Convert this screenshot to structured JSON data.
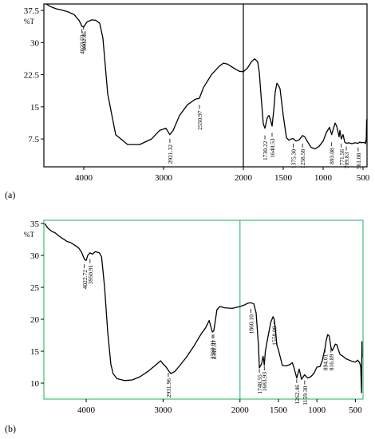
{
  "panels": [
    {
      "label": "(a)",
      "frame_color": "#000000",
      "trace_color": "#000000",
      "marker_color": "#000000",
      "ylabel": "%T",
      "xlim": [
        4500,
        450
      ],
      "ylim": [
        1.0,
        39.0
      ],
      "yticks": [
        {
          "v": 37.5,
          "t": "37.5"
        },
        {
          "v": 30,
          "t": "30"
        },
        {
          "v": 22.5,
          "t": "22.5"
        },
        {
          "v": 15,
          "t": "15"
        },
        {
          "v": 7.5,
          "t": "7.5"
        }
      ],
      "xticks": [
        {
          "v": 4000,
          "t": "4000"
        },
        {
          "v": 3000,
          "t": "3000"
        },
        {
          "v": 2000,
          "t": "2000"
        },
        {
          "v": 1500,
          "t": "1500"
        },
        {
          "v": 1000,
          "t": "1000"
        },
        {
          "v": 500,
          "t": "500"
        }
      ],
      "marker_x": 2000
    },
    {
      "label": "(b)",
      "frame_color": "#3cc07a",
      "trace_color": "#000000",
      "marker_color": "#3cc07a",
      "ylabel": "%T",
      "xlim": [
        4550,
        400
      ],
      "ylim": [
        7.5,
        35.5
      ],
      "yticks": [
        {
          "v": 35,
          "t": "35"
        },
        {
          "v": 30,
          "t": "30"
        },
        {
          "v": 25,
          "t": "25"
        },
        {
          "v": 20,
          "t": "20"
        },
        {
          "v": 15,
          "t": "15"
        },
        {
          "v": 10,
          "t": "10"
        }
      ],
      "xticks": [
        {
          "v": 4000,
          "t": "4000"
        },
        {
          "v": 3000,
          "t": "3000"
        },
        {
          "v": 2000,
          "t": "2000"
        },
        {
          "v": 1500,
          "t": "1500"
        },
        {
          "v": 1000,
          "t": "1000"
        },
        {
          "v": 500,
          "t": "500"
        }
      ],
      "marker_x": 2000
    }
  ],
  "chart_data": [
    {
      "type": "line",
      "title": "(a)",
      "ylabel": "%T",
      "xlim": [
        4500,
        450
      ],
      "ylim": [
        1.0,
        39.0
      ],
      "grid": false,
      "series": [
        {
          "x": [
            4470,
            4420,
            4350,
            4280,
            4200,
            4120,
            4060,
            4023,
            4002,
            3960,
            3900,
            3850,
            3800,
            3760,
            3700,
            3600,
            3450,
            3300,
            3150,
            3050,
            2970,
            2921,
            2880,
            2800,
            2700,
            2600,
            2551,
            2500,
            2400,
            2300,
            2250,
            2200,
            2150,
            2100,
            2050,
            2000,
            1950,
            1900,
            1860,
            1820,
            1800,
            1780,
            1750,
            1730,
            1700,
            1680,
            1660,
            1640,
            1620,
            1600,
            1580,
            1560,
            1540,
            1500,
            1460,
            1430,
            1400,
            1375,
            1340,
            1300,
            1258,
            1230,
            1200,
            1150,
            1100,
            1050,
            1000,
            960,
            920,
            893,
            870,
            850,
            830,
            800,
            790,
            772,
            750,
            730,
            710,
            680,
            640,
            600,
            560,
            540,
            520,
            500,
            480,
            470,
            465,
            460,
            455,
            452
          ],
          "y": [
            39.0,
            38.4,
            37.9,
            37.6,
            37.2,
            36.5,
            35.2,
            33.8,
            33.6,
            34.8,
            35.3,
            35.2,
            34.5,
            31.0,
            18.0,
            8.5,
            6.2,
            6.2,
            7.5,
            9.5,
            10.0,
            8.5,
            9.5,
            13.0,
            15.5,
            16.8,
            17.0,
            19.5,
            22.5,
            24.5,
            25.2,
            25.0,
            24.4,
            23.8,
            23.3,
            23.2,
            24.0,
            25.5,
            26.2,
            25.5,
            23.0,
            18.0,
            11.0,
            10.0,
            12.5,
            13.0,
            12.0,
            10.5,
            14.0,
            18.5,
            20.5,
            20.0,
            19.2,
            13.0,
            7.8,
            7.2,
            7.5,
            7.6,
            7.0,
            7.3,
            8.3,
            8.0,
            7.0,
            5.5,
            5.2,
            5.8,
            7.0,
            9.0,
            10.2,
            8.5,
            10.0,
            11.2,
            10.5,
            8.0,
            9.5,
            7.5,
            8.5,
            6.8,
            6.5,
            6.6,
            6.4,
            6.6,
            6.5,
            6.8,
            6.6,
            6.7,
            6.6,
            6.4,
            7.2,
            6.8,
            12.0,
            11.0
          ]
        }
      ],
      "peak_labels": [
        {
          "x": 4023.59,
          "label": "4023.59",
          "anchor": 4023,
          "y": 32.2
        },
        {
          "x": 4002.46,
          "label": "4002.46",
          "anchor": 4002,
          "y": 33.0
        },
        {
          "x": 2921.32,
          "label": "2921.32",
          "anchor": 2921,
          "y": 6.6
        },
        {
          "x": 2550.97,
          "label": "2550.97",
          "anchor": 2551,
          "y": 14.5
        },
        {
          "x": 1730.22,
          "label": "1730.22",
          "anchor": 1730,
          "y": 7.4
        },
        {
          "x": 1640.53,
          "label": "1640.53",
          "anchor": 1640,
          "y": 8.0
        },
        {
          "x": 1375.3,
          "label": "1375.30",
          "anchor": 1375,
          "y": 5.5
        },
        {
          "x": 1258.58,
          "label": "1258.58",
          "anchor": 1258,
          "y": 5.5
        },
        {
          "x": 893.08,
          "label": "893.08",
          "anchor": 893,
          "y": 5.8
        },
        {
          "x": 771.56,
          "label": "771.56",
          "anchor": 772,
          "y": 5.5
        },
        {
          "x": 709.83,
          "label": "709.83",
          "anchor": 710,
          "y": 4.8
        },
        {
          "x": 561.08,
          "label": "561.08",
          "anchor": 561,
          "y": 4.6
        }
      ]
    },
    {
      "type": "line",
      "title": "(b)",
      "ylabel": "%T",
      "xlim": [
        4550,
        400
      ],
      "ylim": [
        7.5,
        35.5
      ],
      "grid": false,
      "series": [
        {
          "x": [
            4540,
            4500,
            4450,
            4400,
            4350,
            4300,
            4250,
            4200,
            4150,
            4100,
            4060,
            4023,
            4000,
            3980,
            3950,
            3920,
            3880,
            3830,
            3800,
            3760,
            3720,
            3680,
            3650,
            3600,
            3500,
            3400,
            3300,
            3200,
            3100,
            3032,
            3000,
            2960,
            2932,
            2900,
            2850,
            2800,
            2700,
            2600,
            2500,
            2450,
            2400,
            2360,
            2340,
            2300,
            2260,
            2200,
            2100,
            2000,
            1950,
            1900,
            1860,
            1820,
            1790,
            1760,
            1748,
            1720,
            1700,
            1690,
            1684,
            1670,
            1640,
            1600,
            1570,
            1555,
            1540,
            1520,
            1500,
            1450,
            1400,
            1350,
            1320,
            1300,
            1262,
            1230,
            1200,
            1160,
            1120,
            1080,
            1040,
            1000,
            960,
            930,
            894,
            880,
            860,
            840,
            817,
            800,
            780,
            760,
            740,
            720,
            700,
            660,
            620,
            580,
            540,
            500,
            470,
            445,
            430,
            420,
            415,
            412
          ],
          "y": [
            35.0,
            34.3,
            33.8,
            33.5,
            33.0,
            32.6,
            32.2,
            32.0,
            31.6,
            31.2,
            30.5,
            29.4,
            29.2,
            30.0,
            30.4,
            30.2,
            30.6,
            30.4,
            29.8,
            25.0,
            18.0,
            13.0,
            11.5,
            10.7,
            10.4,
            10.5,
            11.0,
            11.8,
            12.8,
            13.5,
            13.0,
            12.5,
            12.0,
            11.5,
            11.8,
            12.5,
            14.0,
            15.8,
            17.8,
            18.6,
            19.8,
            18.0,
            18.2,
            21.5,
            22.0,
            21.8,
            21.7,
            22.0,
            22.2,
            22.5,
            22.6,
            22.4,
            21.0,
            16.0,
            12.4,
            13.0,
            14.2,
            13.4,
            12.8,
            15.0,
            17.0,
            19.5,
            20.4,
            20.0,
            18.5,
            16.0,
            15.2,
            12.8,
            12.7,
            12.9,
            13.2,
            12.5,
            10.8,
            12.2,
            10.6,
            11.3,
            10.8,
            11.0,
            11.5,
            12.5,
            12.6,
            13.5,
            15.5,
            16.6,
            17.6,
            17.4,
            15.6,
            15.1,
            15.6,
            16.1,
            16.0,
            15.2,
            14.5,
            14.2,
            13.8,
            13.6,
            13.4,
            13.3,
            13.6,
            13.2,
            12.6,
            8.5,
            16.5,
            14.0
          ]
        }
      ],
      "peak_labels": [
        {
          "x": 4022.72,
          "label": "4022.72",
          "anchor": 4023,
          "y": 28.0
        },
        {
          "x": 3950.91,
          "label": "3950.91",
          "anchor": 3950,
          "y": 28.8
        },
        {
          "x": 2931.96,
          "label": "2931.96",
          "anchor": 2932,
          "y": 11.0
        },
        {
          "x": 2360.01,
          "label": "2360.01",
          "anchor": 2360,
          "y": 17.0
        },
        {
          "x": 2341.37,
          "label": "2341.37",
          "anchor": 2341,
          "y": 17.0
        },
        {
          "x": 1860.1,
          "label": "1860.10",
          "anchor": 1860,
          "y": 21.0
        },
        {
          "x": 1748.55,
          "label": "1748.55",
          "anchor": 1748,
          "y": 11.6
        },
        {
          "x": 1683.93,
          "label": "1683.93",
          "anchor": 1684,
          "y": 12.0
        },
        {
          "x": 1558.09,
          "label": "1558.09",
          "anchor": 1555,
          "y": 19.2
        },
        {
          "x": 1262.46,
          "label": "1262.46",
          "anchor": 1262,
          "y": 10.0
        },
        {
          "x": 1159.3,
          "label": "1159.30",
          "anchor": 1159,
          "y": 9.8
        },
        {
          "x": 894.01,
          "label": "894.01",
          "anchor": 894,
          "y": 14.8
        },
        {
          "x": 816.89,
          "label": "816.89",
          "anchor": 817,
          "y": 14.8
        }
      ]
    }
  ]
}
